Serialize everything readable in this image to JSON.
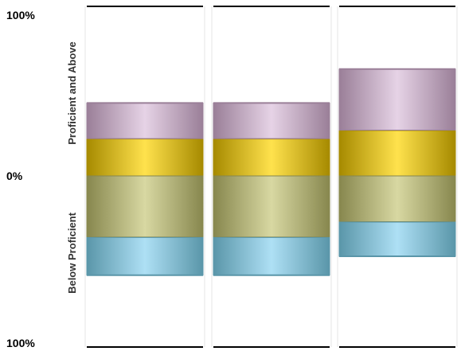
{
  "chart_data": {
    "type": "bar",
    "stacked": true,
    "diverging": true,
    "categories": [
      "",
      "",
      ""
    ],
    "ylim": [
      -100,
      100
    ],
    "y_tick_labels": [
      {
        "value": 100,
        "label": "100%"
      },
      {
        "value": 0,
        "label": "0%"
      },
      {
        "value": -100,
        "label": "100%"
      }
    ],
    "side_labels": {
      "above": "Proficient and Above",
      "below": "Below Proficient"
    },
    "grid": false,
    "legend": "none",
    "series": [
      {
        "key": "advanced",
        "values": [
          22,
          22,
          27
        ],
        "colors": [
          "#a68a00",
          "#ffe24d"
        ]
      },
      {
        "key": "proficient",
        "values": [
          21,
          21,
          36
        ],
        "colors": [
          "#9a7f98",
          "#e6d3e6"
        ]
      },
      {
        "key": "basic",
        "values": [
          -36,
          -36,
          -27
        ],
        "colors": [
          "#87874e",
          "#d8d8a2"
        ]
      },
      {
        "key": "below_basic",
        "values": [
          -22,
          -22,
          -20
        ],
        "colors": [
          "#5a96a9",
          "#aee0f5"
        ]
      }
    ]
  }
}
